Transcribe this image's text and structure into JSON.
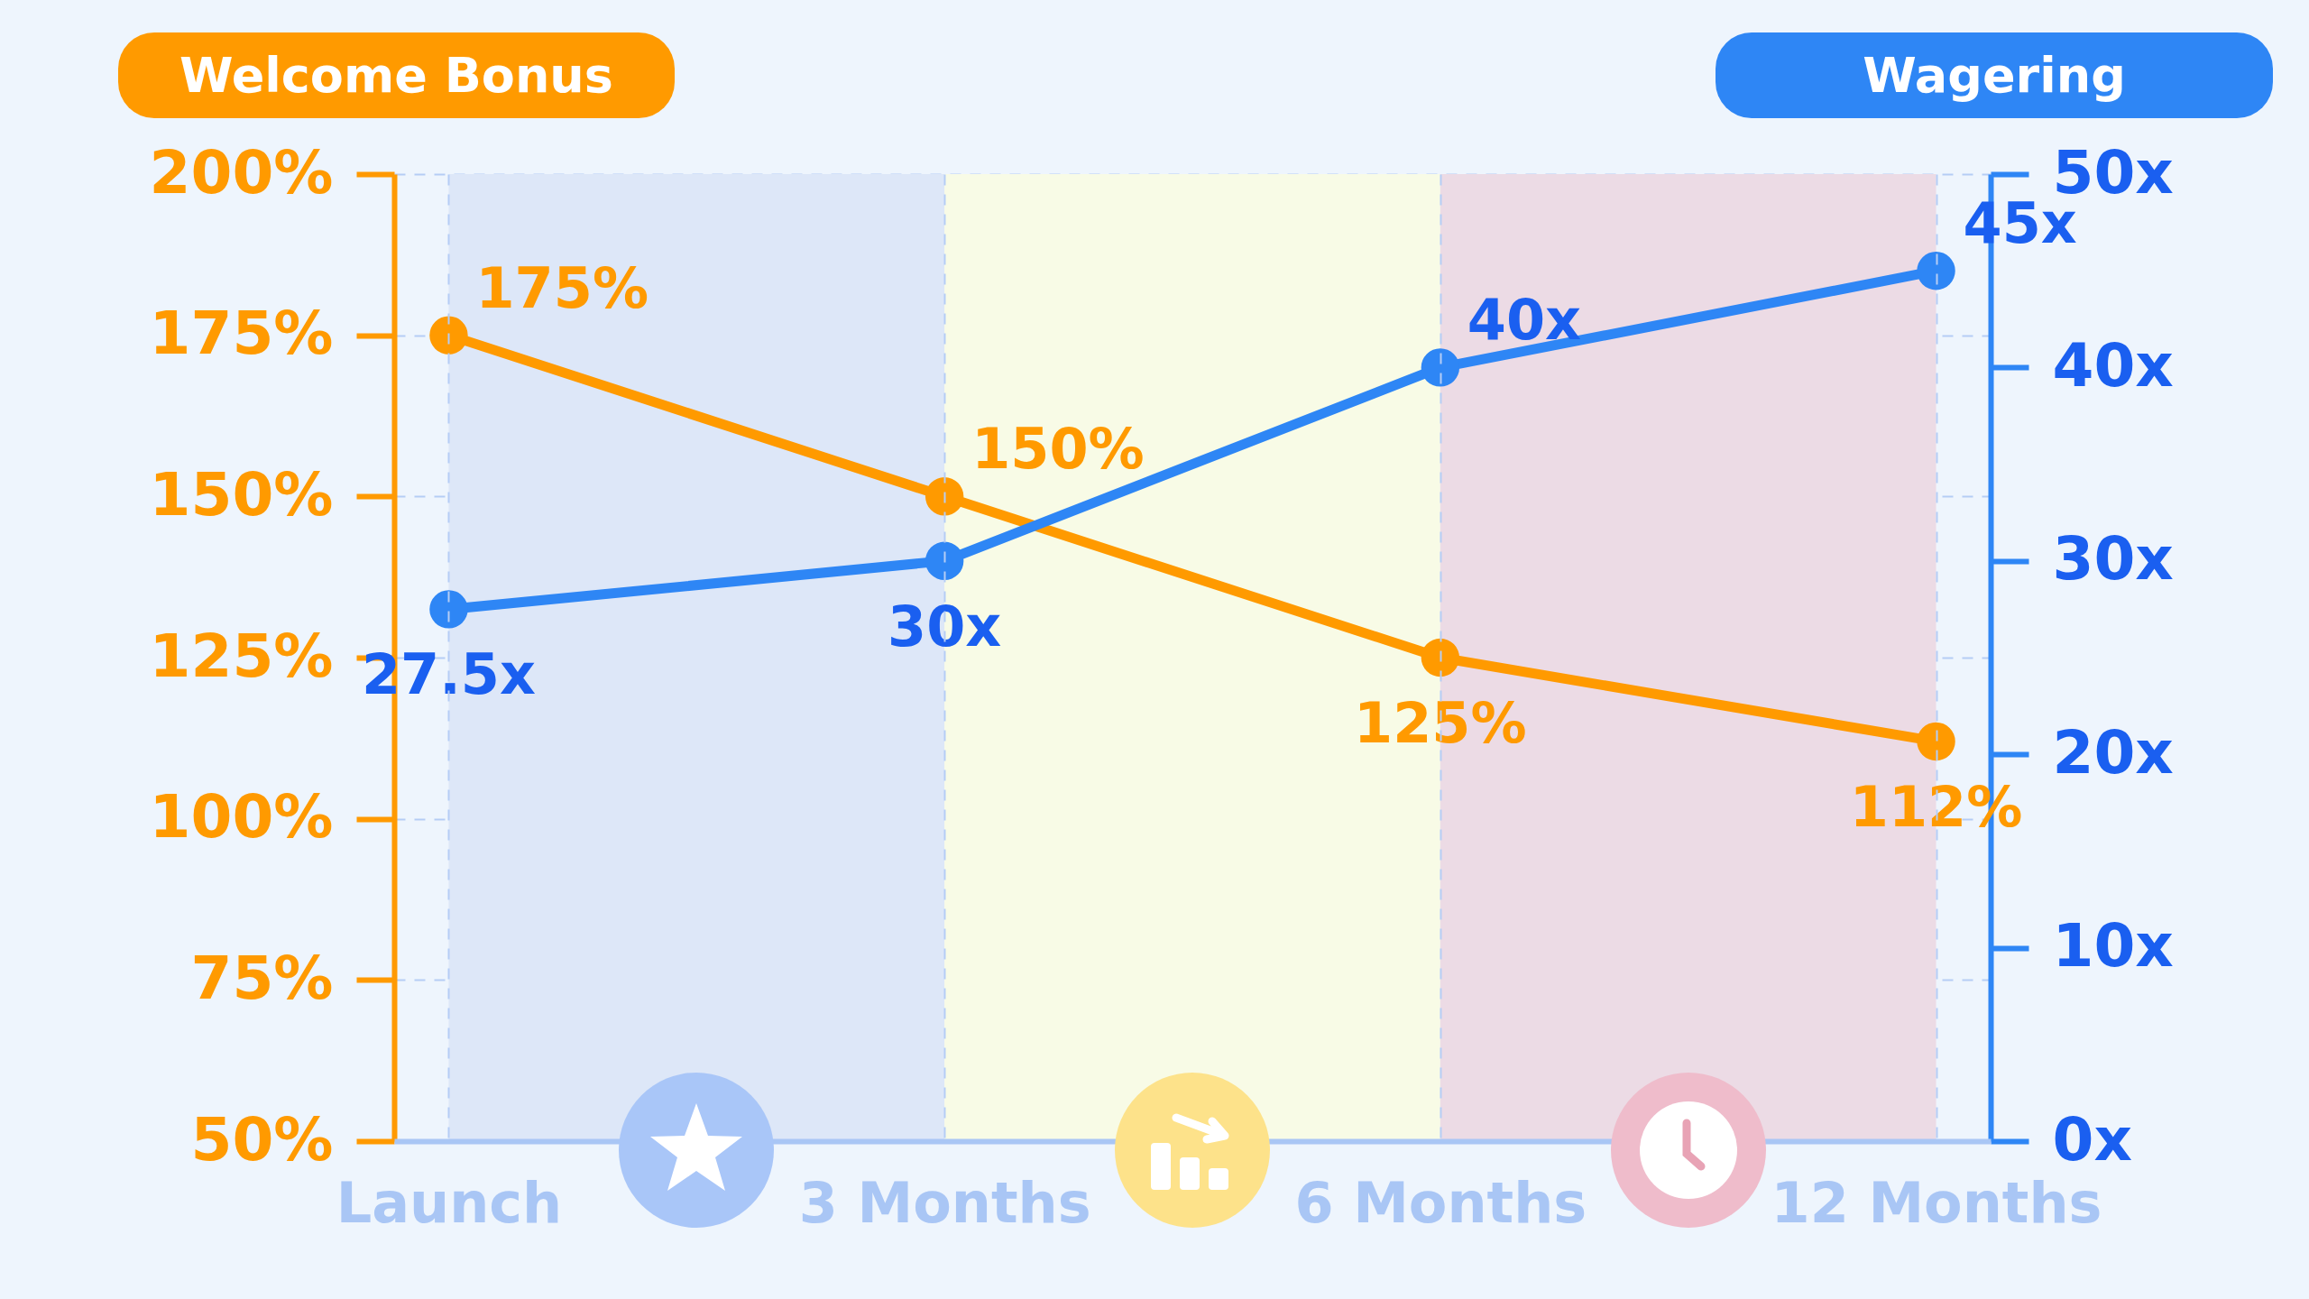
{
  "chart_data": {
    "type": "line",
    "ylabel": "Welcome Bonus",
    "y2label": "Wagering",
    "categories": [
      "Launch",
      "3 Months",
      "6 Months",
      "12 Months"
    ],
    "series": [
      {
        "color": "#ff9a00",
        "values": [
          175,
          150,
          125,
          112
        ],
        "value_labels": [
          "175%",
          "150%",
          "125%",
          "112%"
        ]
      },
      {
        "color": "#2e86f5",
        "axis": "y2",
        "values": [
          27.5,
          30,
          40,
          45
        ],
        "value_labels": [
          "27.5x",
          "30x",
          "40x",
          "45x"
        ]
      }
    ],
    "ylim": [
      50,
      200
    ],
    "yticks": [
      {
        "value": 50,
        "label": "50%"
      },
      {
        "value": 75,
        "label": "75%"
      },
      {
        "value": 100,
        "label": "100%"
      },
      {
        "value": 125,
        "label": "125%"
      },
      {
        "value": 150,
        "label": "150%"
      },
      {
        "value": 175,
        "label": "175%"
      },
      {
        "value": 200,
        "label": "200%"
      }
    ],
    "y2lim": [
      0,
      50
    ],
    "y2ticks": [
      {
        "value": 0,
        "label": "0x"
      },
      {
        "value": 10,
        "label": "10x"
      },
      {
        "value": 20,
        "label": "20x"
      },
      {
        "value": 30,
        "label": "30x"
      },
      {
        "value": 40,
        "label": "40x"
      },
      {
        "value": 50,
        "label": "50x"
      }
    ],
    "bands": [
      {
        "axis": "x",
        "from": "Launch",
        "to": "3 Months",
        "color": "#dde7f8"
      },
      {
        "axis": "x",
        "from": "3 Months",
        "to": "6 Months",
        "color": "#f8fbe6"
      },
      {
        "axis": "x",
        "from": "6 Months",
        "to": "12 Months",
        "color": "#ecdbe5"
      }
    ],
    "grid": true,
    "marker": "circle",
    "line_style": "solid"
  }
}
